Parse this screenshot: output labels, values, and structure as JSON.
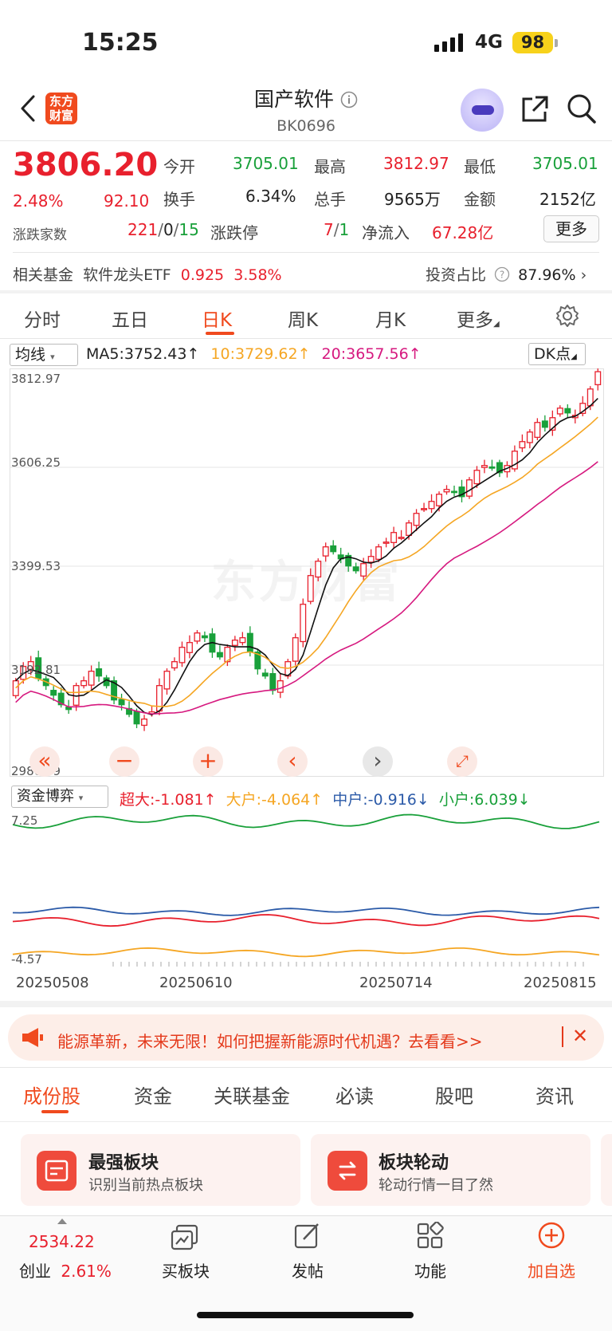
{
  "status": {
    "time": "15:25",
    "network": "4G",
    "battery": "98"
  },
  "header": {
    "logo_text": "东方财富",
    "title": "国产软件",
    "code": "BK0696"
  },
  "quote": {
    "price": "3806.20",
    "change_pct": "2.48%",
    "change": "92.10",
    "stats": [
      {
        "label": "今开",
        "value": "3705.01",
        "color": "green"
      },
      {
        "label": "最高",
        "value": "3812.97",
        "color": "red"
      },
      {
        "label": "最低",
        "value": "3705.01",
        "color": "green"
      },
      {
        "label": "换手",
        "value": "6.34%",
        "color": "black"
      },
      {
        "label": "总手",
        "value": "9565万",
        "color": "black"
      },
      {
        "label": "金额",
        "value": "2152亿",
        "color": "black"
      }
    ],
    "adv_dec_label": "涨跌家数",
    "adv": "221",
    "flat": "0",
    "dec": "15",
    "limit_label": "涨跌停",
    "limit_up": "7",
    "limit_down": "1",
    "netflow_label": "净流入",
    "netflow": "67.28亿",
    "more_label": "更多"
  },
  "fund": {
    "label": "相关基金",
    "name": "软件龙头ETF",
    "price": "0.925",
    "pct": "3.58%",
    "ratio_label": "投资占比",
    "ratio": "87.96%"
  },
  "tabs": [
    "分时",
    "五日",
    "日K",
    "周K",
    "月K",
    "更多"
  ],
  "active_tab": "日K",
  "ma": {
    "select": "均线",
    "ma5": "MA5:3752.43",
    "ma10": "10:3729.62",
    "ma20": "20:3657.56",
    "dk": "DK点"
  },
  "chart_data": {
    "type": "candlestick",
    "y_ticks": [
      "3812.97",
      "3606.25",
      "3399.53",
      "3192.81",
      "2986.09"
    ],
    "ylim": [
      2986.09,
      3812.97
    ],
    "x_labels": [
      "20250508",
      "20250610",
      "20250714",
      "20250815"
    ],
    "closes": [
      3160,
      3190,
      3200,
      3165,
      3150,
      3130,
      3110,
      3100,
      3150,
      3160,
      3180,
      3170,
      3150,
      3120,
      3110,
      3090,
      3070,
      3080,
      3095,
      3150,
      3180,
      3200,
      3230,
      3240,
      3260,
      3250,
      3220,
      3210,
      3230,
      3245,
      3250,
      3220,
      3185,
      3170,
      3140,
      3160,
      3200,
      3250,
      3320,
      3380,
      3410,
      3440,
      3430,
      3415,
      3400,
      3390,
      3405,
      3420,
      3440,
      3450,
      3470,
      3460,
      3490,
      3510,
      3520,
      3535,
      3550,
      3560,
      3555,
      3545,
      3580,
      3600,
      3610,
      3605,
      3595,
      3610,
      3640,
      3660,
      3680,
      3700,
      3690,
      3710,
      3730,
      3720,
      3715,
      3740,
      3770,
      3806.2
    ],
    "ma5": 3752.43,
    "ma10": 3729.62,
    "ma20": 3657.56
  },
  "flow": {
    "select": "资金博弈",
    "super": "超大:-1.081",
    "big": "大户:-4.064",
    "mid": "中户:-0.916",
    "small": "小户:6.039",
    "y_top": "7.25",
    "y_bottom": "-4.57"
  },
  "watermark": "东方财富",
  "ad": {
    "text": "能源革新，未来无限！如何把握新能源时代机遇？去看看>>"
  },
  "subtabs": [
    "成份股",
    "资金",
    "关联基金",
    "必读",
    "股吧",
    "资讯"
  ],
  "cards": [
    {
      "title": "最强板块",
      "sub": "识别当前热点板块"
    },
    {
      "title": "板块轮动",
      "sub": "轮动行情一目了然"
    }
  ],
  "bottom": {
    "index_value": "2534.22",
    "index_name": "创业",
    "index_pct": "2.61%",
    "items": [
      "买板块",
      "发帖",
      "功能",
      "加自选"
    ]
  },
  "colors": {
    "red": "#e8202d",
    "green": "#19a03a",
    "orange": "#f04a1e",
    "ma10": "#f5a623",
    "ma20": "#d6197f",
    "blue": "#2b5aa8"
  }
}
